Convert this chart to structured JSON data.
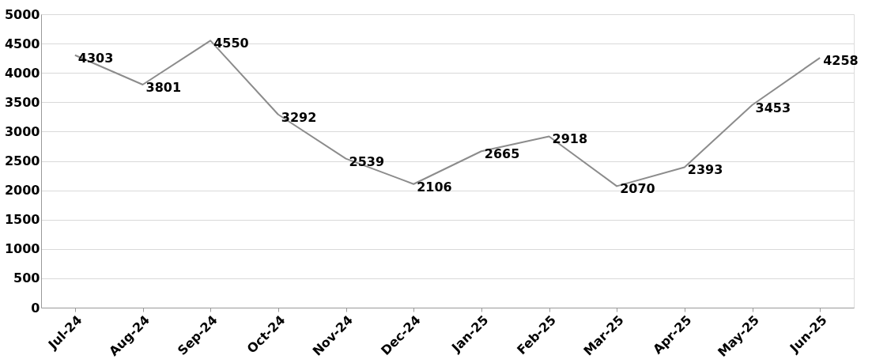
{
  "chart_data": {
    "type": "line",
    "categories": [
      "Jul-24",
      "Aug-24",
      "Sep-24",
      "Oct-24",
      "Nov-24",
      "Dec-24",
      "Jan-25",
      "Feb-25",
      "Mar-25",
      "Apr-25",
      "May-25",
      "Jun-25"
    ],
    "series": [
      {
        "color": "#8c8c8c",
        "values": [
          4303,
          3801,
          4550,
          3292,
          2539,
          2106,
          2665,
          2918,
          2070,
          2393,
          3453,
          4258
        ]
      }
    ],
    "ylim": [
      0,
      5000
    ],
    "yticks": [
      0,
      500,
      1000,
      1500,
      2000,
      2500,
      3000,
      3500,
      4000,
      4500,
      5000
    ],
    "grid": "y",
    "data_labels": true,
    "marker": "none",
    "line_style": "solid"
  }
}
